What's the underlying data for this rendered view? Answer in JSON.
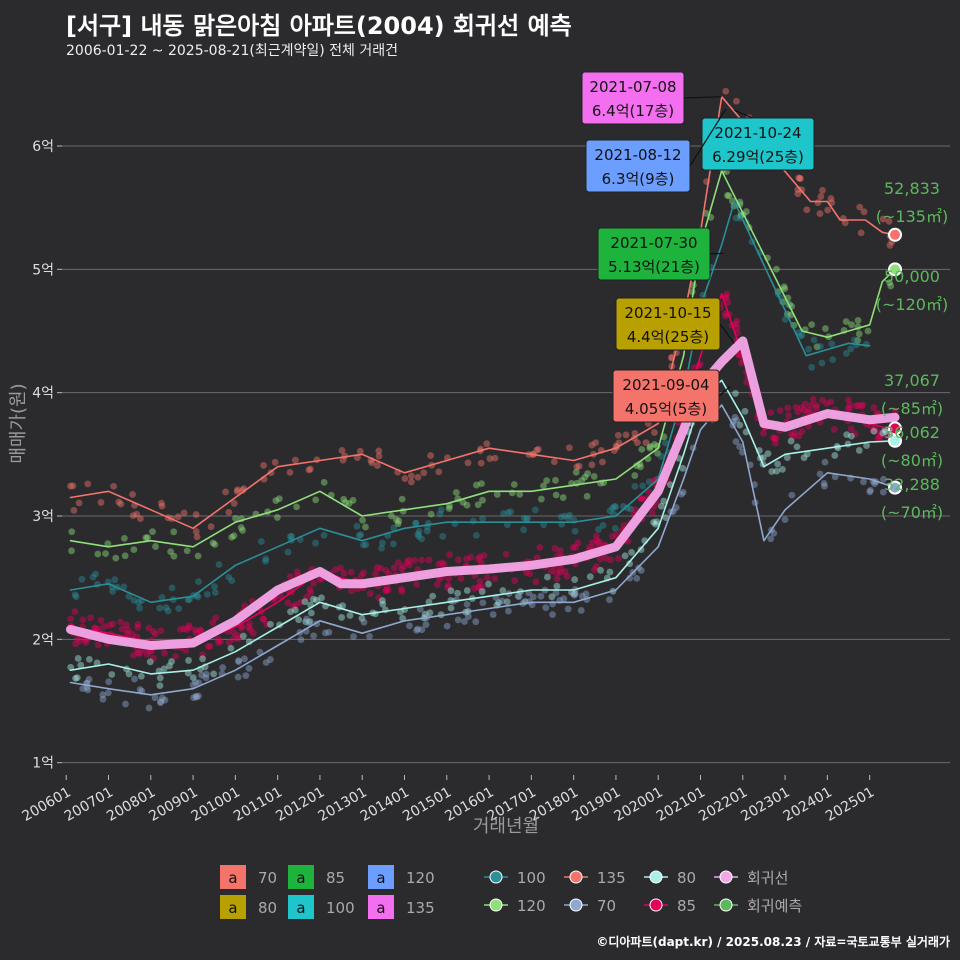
{
  "title": "[서구] 내동 맑은아침 아파트(2004) 회귀선 예측",
  "subtitle": "2006-01-22 ~ 2025-08-21(최근계약일) 전체 거래건",
  "credit": "©디아파트(dapt.kr) / 2025.08.23 / 자료=국토교통부 실거래가",
  "chart_data": {
    "type": "line",
    "xlabel": "거래년월",
    "ylabel": "매매가(원)",
    "x_ticks": [
      "200601",
      "200701",
      "200801",
      "200901",
      "201001",
      "201101",
      "201201",
      "201301",
      "201401",
      "201501",
      "201601",
      "201701",
      "201801",
      "201901",
      "202001",
      "202101",
      "202201",
      "202301",
      "202401",
      "202501"
    ],
    "y_ticks": [
      {
        "value": 1,
        "label": "1억"
      },
      {
        "value": 2,
        "label": "2억"
      },
      {
        "value": 3,
        "label": "3억"
      },
      {
        "value": 4,
        "label": "4억"
      },
      {
        "value": 5,
        "label": "5억"
      },
      {
        "value": 6,
        "label": "6억"
      }
    ],
    "xlim": [
      2005.9,
      2026.9
    ],
    "ylim": [
      0.9,
      6.6
    ],
    "grid": true,
    "series": [
      {
        "name": "135",
        "color": "#f4736b",
        "values": [
          [
            2006.1,
            3.15
          ],
          [
            2007.0,
            3.2
          ],
          [
            2008.0,
            3.05
          ],
          [
            2009.0,
            2.9
          ],
          [
            2010.0,
            3.15
          ],
          [
            2011.0,
            3.4
          ],
          [
            2012.0,
            3.45
          ],
          [
            2013.0,
            3.5
          ],
          [
            2014.0,
            3.35
          ],
          [
            2015.0,
            3.45
          ],
          [
            2016.0,
            3.55
          ],
          [
            2017.0,
            3.5
          ],
          [
            2018.0,
            3.45
          ],
          [
            2019.0,
            3.55
          ],
          [
            2020.0,
            3.75
          ],
          [
            2020.6,
            4.6
          ],
          [
            2021.0,
            5.3
          ],
          [
            2021.5,
            6.4
          ],
          [
            2023.6,
            5.55
          ],
          [
            2024.0,
            5.55
          ],
          [
            2024.3,
            5.4
          ],
          [
            2024.9,
            5.4
          ],
          [
            2025.3,
            5.3
          ],
          [
            2025.6,
            5.28
          ]
        ]
      },
      {
        "name": "120",
        "color": "#8fe07a",
        "values": [
          [
            2006.1,
            2.8
          ],
          [
            2007.0,
            2.75
          ],
          [
            2008.0,
            2.8
          ],
          [
            2009.0,
            2.75
          ],
          [
            2010.0,
            2.95
          ],
          [
            2011.0,
            3.05
          ],
          [
            2012.0,
            3.2
          ],
          [
            2013.0,
            3.0
          ],
          [
            2014.0,
            3.05
          ],
          [
            2015.0,
            3.1
          ],
          [
            2016.0,
            3.2
          ],
          [
            2017.0,
            3.2
          ],
          [
            2018.0,
            3.25
          ],
          [
            2019.0,
            3.3
          ],
          [
            2020.0,
            3.55
          ],
          [
            2020.6,
            4.3
          ],
          [
            2021.0,
            5.2
          ],
          [
            2021.5,
            5.8
          ],
          [
            2023.4,
            4.5
          ],
          [
            2024.0,
            4.45
          ],
          [
            2024.5,
            4.5
          ],
          [
            2025.0,
            4.55
          ],
          [
            2025.3,
            4.9
          ],
          [
            2025.6,
            5.0
          ]
        ]
      },
      {
        "name": "100",
        "color": "#2a8f96",
        "values": [
          [
            2006.1,
            2.4
          ],
          [
            2007.0,
            2.45
          ],
          [
            2008.0,
            2.3
          ],
          [
            2009.0,
            2.35
          ],
          [
            2010.0,
            2.6
          ],
          [
            2011.0,
            2.75
          ],
          [
            2012.0,
            2.9
          ],
          [
            2013.0,
            2.8
          ],
          [
            2014.0,
            2.9
          ],
          [
            2015.0,
            2.95
          ],
          [
            2016.0,
            2.95
          ],
          [
            2017.0,
            2.95
          ],
          [
            2018.0,
            2.95
          ],
          [
            2019.0,
            3.0
          ],
          [
            2020.0,
            3.3
          ],
          [
            2020.6,
            4.0
          ],
          [
            2021.0,
            4.7
          ],
          [
            2021.5,
            5.2
          ],
          [
            2021.8,
            5.55
          ],
          [
            2023.5,
            4.3
          ],
          [
            2024.0,
            4.35
          ],
          [
            2024.5,
            4.4
          ],
          [
            2025.0,
            4.38
          ]
        ]
      },
      {
        "name": "85",
        "color": "#e6005c",
        "values": [
          [
            2006.1,
            2.1
          ],
          [
            2007.0,
            2.05
          ],
          [
            2008.0,
            1.98
          ],
          [
            2009.0,
            1.98
          ],
          [
            2010.0,
            2.1
          ],
          [
            2011.0,
            2.3
          ],
          [
            2012.0,
            2.55
          ],
          [
            2013.0,
            2.45
          ],
          [
            2014.0,
            2.5
          ],
          [
            2015.0,
            2.55
          ],
          [
            2016.0,
            2.55
          ],
          [
            2017.0,
            2.6
          ],
          [
            2018.0,
            2.65
          ],
          [
            2019.0,
            2.75
          ],
          [
            2020.0,
            3.2
          ],
          [
            2020.6,
            3.8
          ],
          [
            2021.0,
            4.3
          ],
          [
            2021.5,
            4.8
          ],
          [
            2022.0,
            4.3
          ],
          [
            2022.5,
            3.7
          ],
          [
            2023.0,
            3.75
          ],
          [
            2024.0,
            3.85
          ],
          [
            2024.6,
            3.8
          ],
          [
            2025.3,
            3.72
          ],
          [
            2025.6,
            3.71
          ]
        ]
      },
      {
        "name": "80",
        "color": "#a9f0e6",
        "values": [
          [
            2006.1,
            1.75
          ],
          [
            2007.0,
            1.8
          ],
          [
            2008.0,
            1.72
          ],
          [
            2009.0,
            1.75
          ],
          [
            2010.0,
            1.9
          ],
          [
            2011.0,
            2.1
          ],
          [
            2012.0,
            2.3
          ],
          [
            2013.0,
            2.2
          ],
          [
            2014.0,
            2.25
          ],
          [
            2015.0,
            2.3
          ],
          [
            2016.0,
            2.35
          ],
          [
            2017.0,
            2.4
          ],
          [
            2018.0,
            2.4
          ],
          [
            2019.0,
            2.5
          ],
          [
            2020.0,
            2.9
          ],
          [
            2020.6,
            3.5
          ],
          [
            2021.0,
            3.95
          ],
          [
            2021.5,
            4.1
          ],
          [
            2022.0,
            3.8
          ],
          [
            2022.5,
            3.4
          ],
          [
            2023.0,
            3.5
          ],
          [
            2024.0,
            3.55
          ],
          [
            2025.0,
            3.6
          ],
          [
            2025.6,
            3.61
          ]
        ]
      },
      {
        "name": "70",
        "color": "#8fa8cf",
        "values": [
          [
            2006.1,
            1.65
          ],
          [
            2007.0,
            1.6
          ],
          [
            2008.0,
            1.55
          ],
          [
            2009.0,
            1.6
          ],
          [
            2010.0,
            1.75
          ],
          [
            2011.0,
            1.95
          ],
          [
            2012.0,
            2.15
          ],
          [
            2013.0,
            2.05
          ],
          [
            2014.0,
            2.15
          ],
          [
            2015.0,
            2.2
          ],
          [
            2016.0,
            2.25
          ],
          [
            2017.0,
            2.3
          ],
          [
            2018.0,
            2.3
          ],
          [
            2019.0,
            2.4
          ],
          [
            2020.0,
            2.75
          ],
          [
            2020.6,
            3.3
          ],
          [
            2021.0,
            3.7
          ],
          [
            2021.5,
            3.9
          ],
          [
            2022.0,
            3.6
          ],
          [
            2022.5,
            2.8
          ],
          [
            2023.0,
            3.05
          ],
          [
            2024.0,
            3.35
          ],
          [
            2025.0,
            3.3
          ],
          [
            2025.6,
            3.23
          ]
        ]
      },
      {
        "name": "회귀선",
        "color": "#f4a6e8",
        "values": [
          [
            2006.1,
            2.08
          ],
          [
            2007.0,
            2.0
          ],
          [
            2008.0,
            1.95
          ],
          [
            2009.0,
            1.97
          ],
          [
            2010.0,
            2.15
          ],
          [
            2011.0,
            2.4
          ],
          [
            2012.0,
            2.55
          ],
          [
            2012.5,
            2.45
          ],
          [
            2013.0,
            2.45
          ],
          [
            2014.0,
            2.5
          ],
          [
            2015.0,
            2.55
          ],
          [
            2016.0,
            2.57
          ],
          [
            2017.0,
            2.6
          ],
          [
            2018.0,
            2.65
          ],
          [
            2019.0,
            2.75
          ],
          [
            2020.0,
            3.2
          ],
          [
            2020.6,
            3.7
          ],
          [
            2021.0,
            4.05
          ],
          [
            2021.5,
            4.25
          ],
          [
            2022.0,
            4.42
          ],
          [
            2022.5,
            3.75
          ],
          [
            2023.0,
            3.72
          ],
          [
            2024.0,
            3.83
          ],
          [
            2025.0,
            3.78
          ],
          [
            2025.6,
            3.8
          ]
        ]
      }
    ],
    "annotations": [
      {
        "date": "2021-07-08",
        "price": "6.4억(17층)",
        "color": "#f36ff0"
      },
      {
        "date": "2021-10-24",
        "price": "6.29억(25층)",
        "color": "#1ec6cc"
      },
      {
        "date": "2021-08-12",
        "price": "6.3억(9층)",
        "color": "#6b9eff"
      },
      {
        "date": "2021-07-30",
        "price": "5.13억(21층)",
        "color": "#1db33c"
      },
      {
        "date": "2021-10-15",
        "price": "4.4억(25층)",
        "color": "#b8a000"
      },
      {
        "date": "2021-09-04",
        "price": "4.05억(5층)",
        "color": "#f4736b"
      }
    ],
    "predictions": [
      {
        "value": "52,833",
        "area": "(~135㎡)",
        "y": 5.28,
        "color": "#f4736b"
      },
      {
        "value": "50,000",
        "area": "(~120㎡)",
        "y": 5.0,
        "color": "#8fe07a"
      },
      {
        "value": "37,067",
        "area": "(~85㎡)",
        "y": 3.71,
        "color": "#e6005c"
      },
      {
        "value": "36,062",
        "area": "(~80㎡)",
        "y": 3.61,
        "color": "#a9f0e6"
      },
      {
        "value": "32,288",
        "area": "(~70㎡)",
        "y": 3.23,
        "color": "#8fa8cf"
      }
    ],
    "legend_boxes": [
      {
        "label": "70",
        "color": "#f4736b"
      },
      {
        "label": "85",
        "color": "#1db33c"
      },
      {
        "label": "120",
        "color": "#6b9eff"
      },
      {
        "label": "80",
        "color": "#b8a000"
      },
      {
        "label": "100",
        "color": "#1ec6cc"
      },
      {
        "label": "135",
        "color": "#f36ff0"
      }
    ],
    "legend_lines": [
      {
        "label": "100",
        "color": "#2a8f96"
      },
      {
        "label": "135",
        "color": "#f4736b"
      },
      {
        "label": "80",
        "color": "#a9f0e6"
      },
      {
        "label": "회귀선",
        "color": "#f4a6e8"
      },
      {
        "label": "120",
        "color": "#8fe07a"
      },
      {
        "label": "70",
        "color": "#8fa8cf"
      },
      {
        "label": "85",
        "color": "#e6005c"
      },
      {
        "label": "회귀예측",
        "color": "#5cb85c"
      }
    ],
    "box_symbol": "a",
    "legend_position": "bottom"
  }
}
